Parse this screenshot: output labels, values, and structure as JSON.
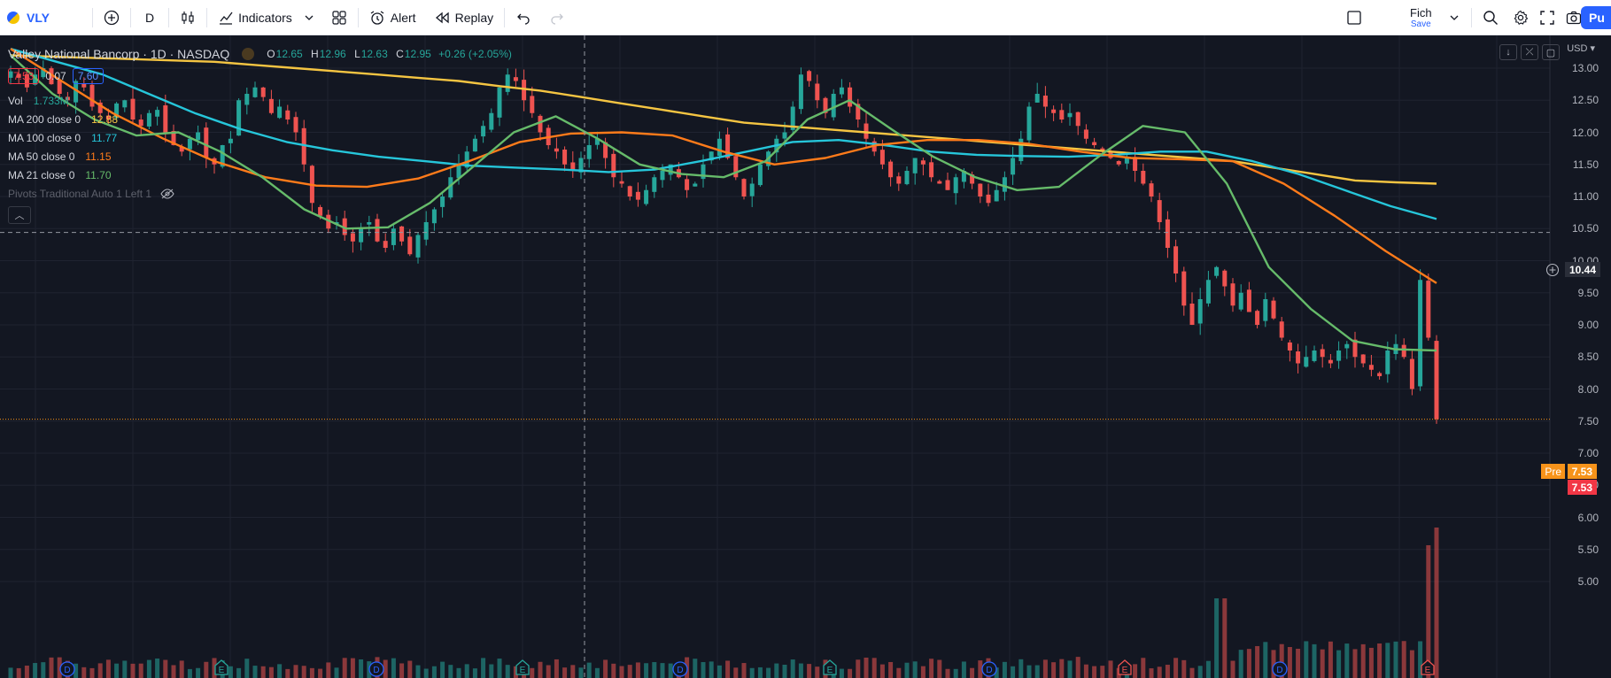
{
  "toolbar": {
    "symbol": "VLY",
    "interval": "D",
    "indicators_label": "Indicators",
    "alert_label": "Alert",
    "replay_label": "Replay",
    "layout_name": "Fich",
    "save_label": "Save",
    "publish_label": "Pu"
  },
  "legend": {
    "title": "Valley National Bancorp · 1D · NASDAQ",
    "open_label": "O",
    "open": "12.65",
    "high_label": "H",
    "high": "12.96",
    "low_label": "L",
    "low": "12.63",
    "close_label": "C",
    "close": "12.95",
    "change": "+0.26 (+2.05%)",
    "bid": "7.53",
    "spread": "0.07",
    "ask": "7.60",
    "vol_name": "Vol",
    "vol_value": "1.733M",
    "indicators": [
      {
        "name": "MA 200 close 0",
        "value": "12.88",
        "color": "#f5c542"
      },
      {
        "name": "MA 100 close 0",
        "value": "11.77",
        "color": "#26c6da"
      },
      {
        "name": "MA 50 close 0",
        "value": "11.15",
        "color": "#ff7b1a"
      },
      {
        "name": "MA 21 close 0",
        "value": "11.70",
        "color": "#66bb6a"
      }
    ],
    "pivots": "Pivots Traditional Auto 1 Left 1"
  },
  "price_scale": {
    "currency": "USD",
    "labels": [
      "13.00",
      "12.50",
      "12.00",
      "11.50",
      "11.00",
      "10.50",
      "10.00",
      "9.50",
      "9.00",
      "8.50",
      "8.00",
      "7.50",
      "7.00",
      "6.50",
      "6.00",
      "5.50",
      "5.00"
    ],
    "crosshair_price": "10.44",
    "pre_label": "Pre",
    "pre_price": "7.53",
    "last_price": "7.53"
  },
  "chart_data": {
    "type": "candlestick",
    "symbol": "VLY",
    "interval": "1D",
    "ylim": [
      5.0,
      13.4
    ],
    "close": [
      12.95,
      12.85,
      12.7,
      12.9,
      13.0,
      12.75,
      12.6,
      12.5,
      12.8,
      12.7,
      12.4,
      12.3,
      12.2,
      12.45,
      12.5,
      12.2,
      12.1,
      12.3,
      12.35,
      12.0,
      11.8,
      11.7,
      11.9,
      12.0,
      11.6,
      11.5,
      11.8,
      11.9,
      12.5,
      12.6,
      12.7,
      12.55,
      12.3,
      12.4,
      12.2,
      12.0,
      11.5,
      10.9,
      10.7,
      10.5,
      10.6,
      10.4,
      10.3,
      10.5,
      10.6,
      10.3,
      10.2,
      10.5,
      10.3,
      10.1,
      10.4,
      10.6,
      10.8,
      11.0,
      11.3,
      11.5,
      11.7,
      11.9,
      12.1,
      12.3,
      12.7,
      12.9,
      12.8,
      12.5,
      12.3,
      12.0,
      11.8,
      11.7,
      11.5,
      11.4,
      11.6,
      11.8,
      11.9,
      11.6,
      11.3,
      11.2,
      11.0,
      10.95,
      11.1,
      11.3,
      11.4,
      11.5,
      11.3,
      11.1,
      11.2,
      11.5,
      11.7,
      11.9,
      11.6,
      11.3,
      11.0,
      11.2,
      11.5,
      11.7,
      11.9,
      12.0,
      12.4,
      12.9,
      12.8,
      12.5,
      12.3,
      12.6,
      12.7,
      12.4,
      12.2,
      11.9,
      11.7,
      11.5,
      11.3,
      11.2,
      11.4,
      11.6,
      11.5,
      11.3,
      11.2,
      11.1,
      11.3,
      11.4,
      11.2,
      11.0,
      10.9,
      11.1,
      11.3,
      11.6,
      11.9,
      12.4,
      12.6,
      12.4,
      12.3,
      12.2,
      12.3,
      12.1,
      11.9,
      11.8,
      11.7,
      11.6,
      11.5,
      11.6,
      11.4,
      11.2,
      11.0,
      10.6,
      10.2,
      9.8,
      9.3,
      9.0,
      9.4,
      9.7,
      9.9,
      9.6,
      9.3,
      9.5,
      9.2,
      9.0,
      9.4,
      9.1,
      8.8,
      8.6,
      8.4,
      8.5,
      8.6,
      8.5,
      8.4,
      8.6,
      8.7,
      8.5,
      8.4,
      8.3,
      8.2,
      8.6,
      8.7,
      8.5,
      8.0,
      9.7,
      8.8,
      7.53
    ],
    "ma200": [
      13.2,
      13.18,
      13.16,
      13.14,
      13.12,
      13.1,
      13.05,
      13.0,
      12.95,
      12.9,
      12.85,
      12.8,
      12.72,
      12.65,
      12.55,
      12.45,
      12.35,
      12.25,
      12.15,
      12.1,
      12.05,
      12.0,
      11.95,
      11.9,
      11.85,
      11.8,
      11.75,
      11.7,
      11.65,
      11.6,
      11.55,
      11.45,
      11.35,
      11.25,
      11.22,
      11.2
    ],
    "ma100": [
      13.3,
      13.1,
      12.9,
      12.6,
      12.3,
      12.05,
      11.85,
      11.72,
      11.62,
      11.55,
      11.48,
      11.45,
      11.42,
      11.38,
      11.42,
      11.55,
      11.7,
      11.85,
      11.88,
      11.8,
      11.7,
      11.65,
      11.63,
      11.62,
      11.65,
      11.7,
      11.7,
      11.55,
      11.35,
      11.1,
      10.85,
      10.65
    ],
    "ma50": [
      13.3,
      12.8,
      12.3,
      11.9,
      11.55,
      11.3,
      11.17,
      11.15,
      11.28,
      11.55,
      11.85,
      11.98,
      12.0,
      11.95,
      11.7,
      11.5,
      11.6,
      11.8,
      11.88,
      11.88,
      11.82,
      11.7,
      11.6,
      11.58,
      11.55,
      11.2,
      10.7,
      10.15,
      9.65
    ],
    "ma21": [
      13.2,
      12.6,
      12.2,
      11.95,
      12.0,
      11.7,
      11.3,
      10.8,
      10.5,
      10.52,
      10.9,
      11.45,
      12.0,
      12.25,
      11.9,
      11.5,
      11.35,
      11.3,
      11.55,
      12.2,
      12.5,
      12.05,
      11.62,
      11.3,
      11.1,
      11.15,
      11.65,
      12.1,
      12.0,
      11.2,
      9.9,
      9.25,
      8.75,
      8.62,
      8.6
    ]
  }
}
